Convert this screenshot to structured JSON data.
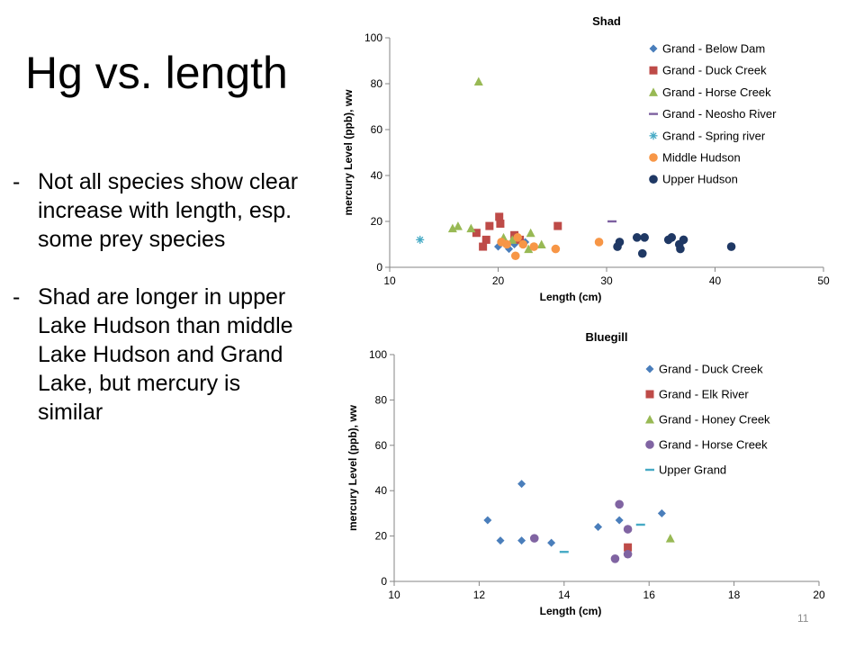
{
  "slide": {
    "title": "Hg vs. length",
    "bullets": [
      "Not all species show clear increase with length, esp. some prey species",
      "Shad are longer in upper Lake Hudson than middle Lake Hudson and Grand Lake, but mercury is similar"
    ],
    "bullet_marker": "-",
    "page_number": "11"
  },
  "chart_data": [
    {
      "type": "scatter",
      "title": "Shad",
      "xlabel": "Length (cm)",
      "ylabel": "mercury Level (ppb), ww",
      "xlim": [
        10,
        50
      ],
      "ylim": [
        0,
        100
      ],
      "xticks": [
        10,
        20,
        30,
        40,
        50
      ],
      "yticks": [
        0,
        20,
        40,
        60,
        80,
        100
      ],
      "grid": false,
      "legend": "right",
      "series": [
        {
          "name": "Grand - Below Dam",
          "marker": "diamond",
          "color": "#4A7EBB",
          "points": [
            [
              20.0,
              9
            ],
            [
              21.0,
              8
            ],
            [
              21.5,
              10
            ],
            [
              22.5,
              11
            ]
          ]
        },
        {
          "name": "Grand - Duck Creek",
          "marker": "square",
          "color": "#BE4B48",
          "points": [
            [
              18.0,
              15
            ],
            [
              18.6,
              9
            ],
            [
              18.9,
              12
            ],
            [
              19.2,
              18
            ],
            [
              20.1,
              22
            ],
            [
              20.2,
              19
            ],
            [
              21.5,
              14
            ],
            [
              22.0,
              12
            ],
            [
              25.5,
              18
            ]
          ]
        },
        {
          "name": "Grand - Horse Creek",
          "marker": "triangle",
          "color": "#98B954",
          "points": [
            [
              18.2,
              81
            ],
            [
              15.8,
              17
            ],
            [
              16.3,
              18
            ],
            [
              17.5,
              17
            ],
            [
              20.5,
              13
            ],
            [
              21.3,
              12
            ],
            [
              22.8,
              8
            ],
            [
              23.0,
              15
            ],
            [
              24.0,
              10
            ]
          ]
        },
        {
          "name": "Grand - Neosho River",
          "marker": "dash",
          "color": "#7D60A0",
          "points": [
            [
              30.5,
              20
            ]
          ]
        },
        {
          "name": "Grand - Spring river",
          "marker": "asterisk",
          "color": "#46AAC5",
          "points": [
            [
              12.8,
              12
            ]
          ]
        },
        {
          "name": "Middle Hudson",
          "marker": "circle",
          "color": "#F79646",
          "points": [
            [
              20.3,
              11
            ],
            [
              20.8,
              10
            ],
            [
              21.6,
              5
            ],
            [
              21.8,
              13
            ],
            [
              22.3,
              10
            ],
            [
              23.3,
              9
            ],
            [
              25.3,
              8
            ],
            [
              29.3,
              11
            ]
          ]
        },
        {
          "name": "Upper Hudson",
          "marker": "circle",
          "color": "#1F3864",
          "points": [
            [
              31.0,
              9
            ],
            [
              31.2,
              11
            ],
            [
              32.8,
              13
            ],
            [
              33.3,
              6
            ],
            [
              33.5,
              13
            ],
            [
              35.7,
              12
            ],
            [
              36.0,
              13
            ],
            [
              36.7,
              10
            ],
            [
              36.8,
              8
            ],
            [
              37.1,
              12
            ],
            [
              41.5,
              9
            ]
          ]
        }
      ]
    },
    {
      "type": "scatter",
      "title": "Bluegill",
      "xlabel": "Length (cm)",
      "ylabel": "mercury Level (ppb), ww",
      "xlim": [
        10,
        20
      ],
      "ylim": [
        0,
        100
      ],
      "xticks": [
        10,
        12,
        14,
        16,
        18,
        20
      ],
      "yticks": [
        0,
        20,
        40,
        60,
        80,
        100
      ],
      "grid": false,
      "legend": "right",
      "series": [
        {
          "name": "Grand - Duck Creek",
          "marker": "diamond",
          "color": "#4A7EBB",
          "points": [
            [
              12.2,
              27
            ],
            [
              12.5,
              18
            ],
            [
              13.0,
              18
            ],
            [
              13.0,
              43
            ],
            [
              13.7,
              17
            ],
            [
              14.8,
              24
            ],
            [
              15.3,
              27
            ],
            [
              16.3,
              30
            ]
          ]
        },
        {
          "name": "Grand - Elk River",
          "marker": "square",
          "color": "#BE4B48",
          "points": [
            [
              15.5,
              15
            ]
          ]
        },
        {
          "name": "Grand - Honey Creek",
          "marker": "triangle",
          "color": "#98B954",
          "points": [
            [
              16.5,
              19
            ]
          ]
        },
        {
          "name": "Grand - Horse Creek",
          "marker": "circle",
          "color": "#8064A2",
          "points": [
            [
              13.3,
              19
            ],
            [
              15.2,
              10
            ],
            [
              15.3,
              34
            ],
            [
              15.5,
              23
            ],
            [
              15.5,
              12
            ]
          ]
        },
        {
          "name": "Upper Grand",
          "marker": "dash",
          "color": "#46AAC5",
          "points": [
            [
              14.0,
              13
            ],
            [
              15.8,
              25
            ]
          ]
        }
      ]
    }
  ]
}
